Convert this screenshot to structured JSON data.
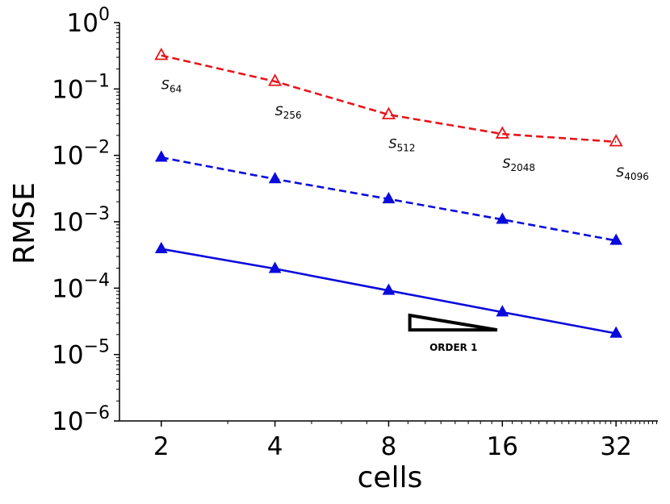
{
  "chart_data": {
    "type": "line",
    "title": "",
    "xlabel": "cells",
    "ylabel": "RMSE",
    "xscale": "log2",
    "yscale": "log10",
    "x": [
      2,
      4,
      8,
      16,
      32
    ],
    "xticks": [
      "2",
      "4",
      "8",
      "16",
      "32"
    ],
    "xlim": [
      1.55,
      41.3
    ],
    "yticks": [
      {
        "base": "10",
        "exp": "0"
      },
      {
        "base": "10",
        "exp": "−1"
      },
      {
        "base": "10",
        "exp": "−2"
      },
      {
        "base": "10",
        "exp": "−3"
      },
      {
        "base": "10",
        "exp": "−4"
      },
      {
        "base": "10",
        "exp": "−5"
      },
      {
        "base": "10",
        "exp": "−6"
      }
    ],
    "ylim": [
      1e-06,
      1
    ],
    "series": [
      {
        "name": "red dashed",
        "color": "#e8141a",
        "style": "dashed",
        "marker": "open-triangle",
        "values": [
          0.32,
          0.13,
          0.041,
          0.021,
          0.016
        ]
      },
      {
        "name": "blue dashed",
        "color": "#0a0adc",
        "style": "dashed",
        "marker": "filled-triangle",
        "values": [
          0.0093,
          0.0044,
          0.0022,
          0.00108,
          0.00052
        ]
      },
      {
        "name": "blue solid",
        "color": "#0a0adc",
        "style": "solid",
        "marker": "filled-triangle",
        "values": [
          0.00039,
          0.000196,
          9.2e-05,
          4.35e-05,
          2.08e-05
        ]
      }
    ],
    "annotations": [
      {
        "x": 2,
        "y": 0.1,
        "base": "S",
        "sub": "64"
      },
      {
        "x": 4,
        "y": 0.04,
        "base": "S",
        "sub": "256"
      },
      {
        "x": 8,
        "y": 0.013,
        "base": "S",
        "sub": "512"
      },
      {
        "x": 16,
        "y": 0.0065,
        "base": "S",
        "sub": "2048"
      },
      {
        "x": 32,
        "y": 0.0048,
        "base": "S",
        "sub": "4096"
      }
    ],
    "order_triangle": {
      "label": "ORDER 1",
      "x_start": 9.1,
      "x_end": 15.5,
      "y_top": 3.9e-05,
      "y_bottom": 2.35e-05
    }
  }
}
